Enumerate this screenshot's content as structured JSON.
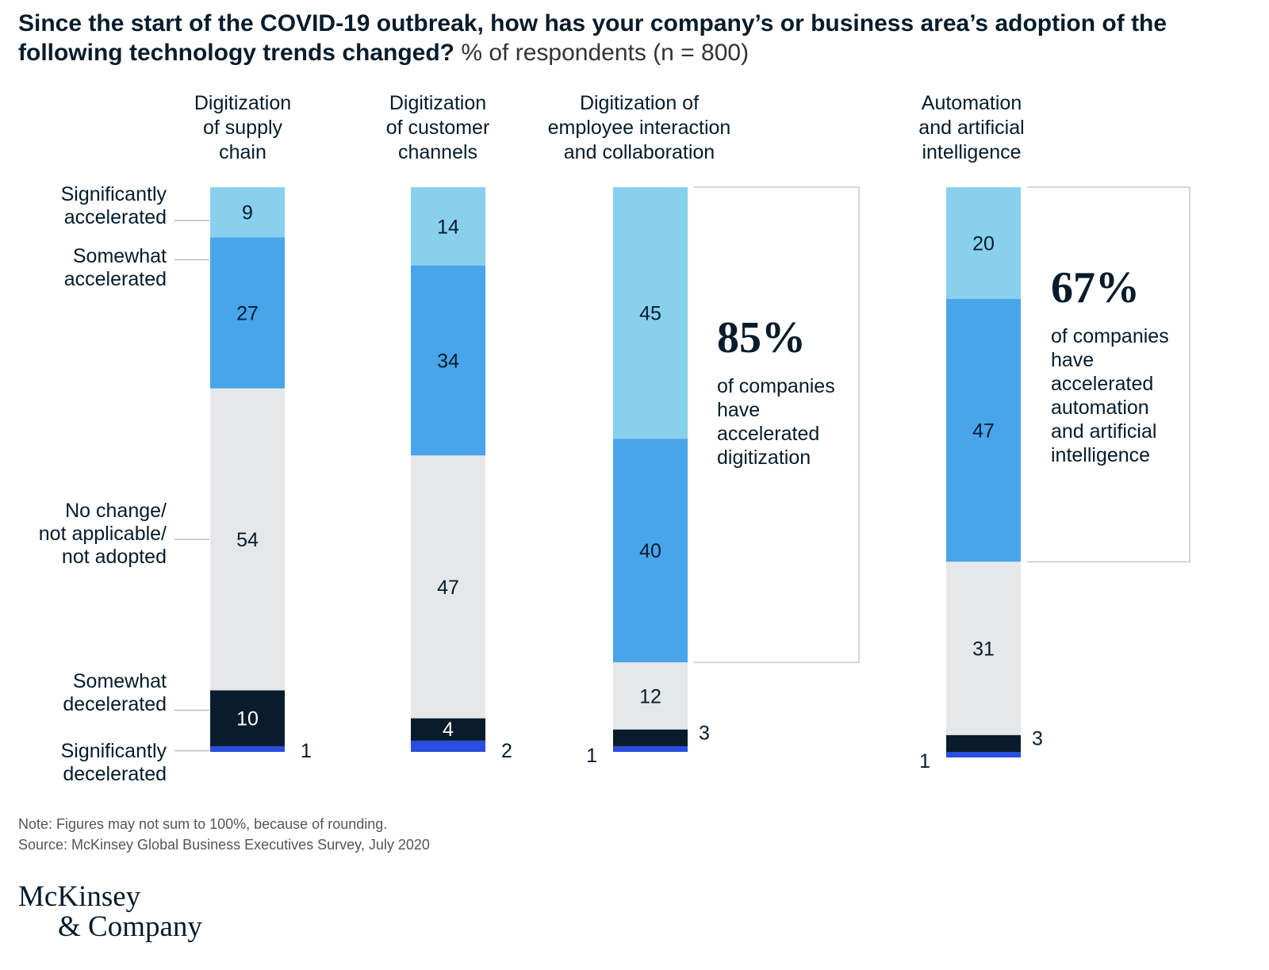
{
  "title": {
    "bold": "Since the start of the COVID-19 outbreak, how has your company’s or business area’s adoption of the following technology trends changed?",
    "light": "% of respondents (n = 800)"
  },
  "chart_data": {
    "type": "bar",
    "stacked": true,
    "orientation": "vertical",
    "categories": [
      "Digitization of supply chain",
      "Digitization of customer channels",
      "Digitization of employee interaction and collaboration",
      "Automation and artificial intelligence"
    ],
    "category_labels": [
      "Digitization\nof supply\nchain",
      "Digitization\nof customer\nchannels",
      "Digitization of\nemployee interaction\nand collaboration",
      "Automation\nand artificial\nintelligence"
    ],
    "series": [
      {
        "name": "Significantly accelerated",
        "label": "Significantly\naccelerated",
        "color": "#88d0ec",
        "values": [
          9,
          14,
          45,
          20
        ]
      },
      {
        "name": "Somewhat accelerated",
        "label": "Somewhat\naccelerated",
        "color": "#48a5ea",
        "values": [
          27,
          34,
          40,
          47
        ]
      },
      {
        "name": "No change/not applicable/not adopted",
        "label": "No change/\nnot applicable/\nnot adopted",
        "color": "#e6e7e9",
        "values": [
          54,
          47,
          12,
          31
        ]
      },
      {
        "name": "Somewhat decelerated",
        "label": "Somewhat\ndecelerated",
        "color": "#0a1c2c",
        "values": [
          10,
          4,
          3,
          3
        ]
      },
      {
        "name": "Significantly decelerated",
        "label": "Significantly\ndecelerated",
        "color": "#2a4ee0",
        "values": [
          1,
          2,
          1,
          1
        ]
      }
    ],
    "ylim": [
      0,
      101
    ],
    "callouts": [
      {
        "category": "Digitization of employee interaction and collaboration",
        "value": "85%",
        "text": "of companies\nhave\naccelerated\ndigitization"
      },
      {
        "category": "Automation and artificial intelligence",
        "value": "67%",
        "text": "of companies\nhave\naccelerated\nautomation\nand artificial\nintelligence"
      }
    ]
  },
  "notes": {
    "note": "Note: Figures may not sum to 100%, because of rounding.",
    "source": "Source: McKinsey Global Business Executives Survey, July 2020"
  },
  "logo": {
    "line1": "McKinsey",
    "line2": "& Company"
  }
}
